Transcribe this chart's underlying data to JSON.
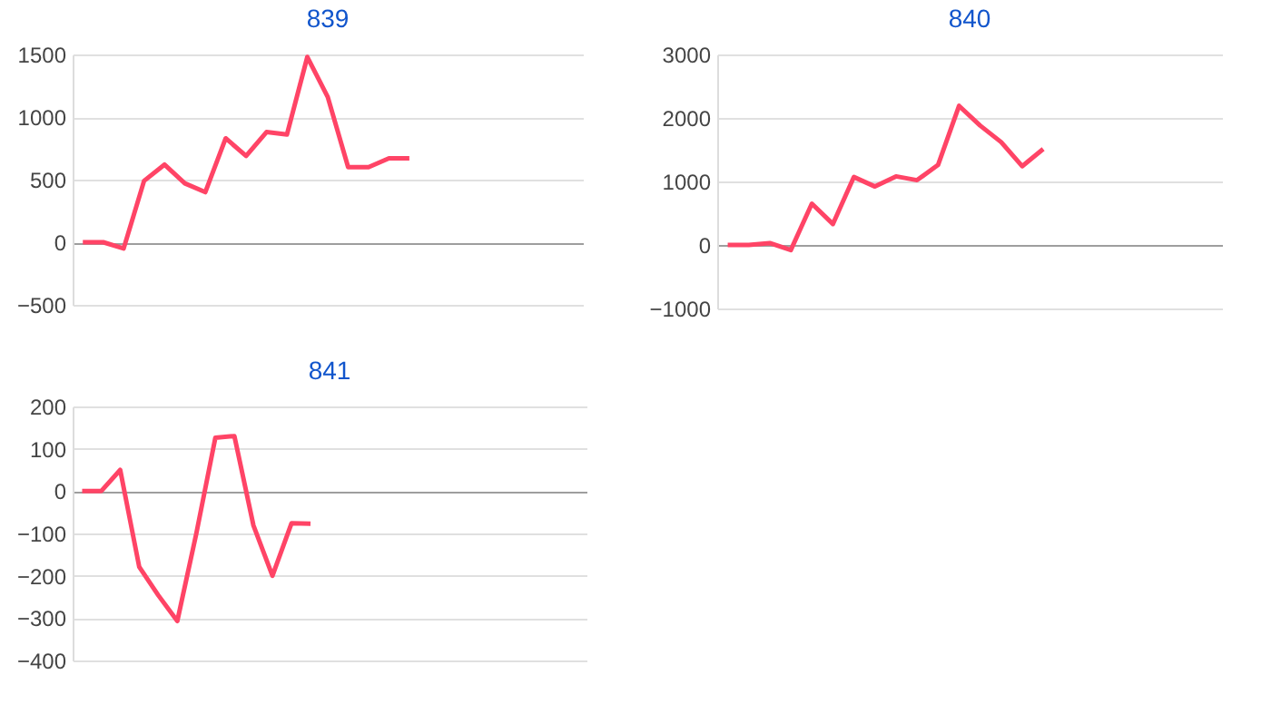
{
  "chart_data": [
    {
      "type": "line",
      "title": "839",
      "categories": [
        null,
        null,
        null,
        null,
        null,
        null,
        null,
        null,
        null,
        null,
        null,
        null,
        null,
        null,
        null,
        null,
        null,
        null,
        null,
        null,
        null,
        null,
        null,
        null,
        null
      ],
      "series": [
        {
          "color": "#ff4466",
          "values": [
            0,
            0,
            -50,
            490,
            620,
            470,
            400,
            830,
            690,
            880,
            860,
            1480,
            1160,
            600,
            600,
            670,
            670,
            null,
            null,
            null,
            null,
            null,
            null,
            null,
            null
          ]
        }
      ],
      "ylim": [
        -500,
        1500
      ],
      "yticks": [
        -500,
        0,
        500,
        1000,
        1500
      ],
      "grid": "y",
      "tick_labels": "y"
    },
    {
      "type": "line",
      "title": "840",
      "categories": [
        null,
        null,
        null,
        null,
        null,
        null,
        null,
        null,
        null,
        null,
        null,
        null,
        null,
        null,
        null,
        null,
        null,
        null,
        null,
        null,
        null,
        null,
        null,
        null
      ],
      "series": [
        {
          "color": "#ff4466",
          "values": [
            0,
            0,
            30,
            -80,
            650,
            330,
            1070,
            920,
            1080,
            1020,
            1260,
            2190,
            1880,
            1620,
            1240,
            1510,
            null,
            null,
            null,
            null,
            null,
            null,
            null,
            null
          ]
        }
      ],
      "ylim": [
        -1000,
        3000
      ],
      "yticks": [
        -1000,
        0,
        1000,
        2000,
        3000
      ],
      "grid": "y",
      "tick_labels": "y"
    },
    {
      "type": "line",
      "title": "841",
      "categories": [
        null,
        null,
        null,
        null,
        null,
        null,
        null,
        null,
        null,
        null,
        null,
        null,
        null,
        null,
        null,
        null,
        null,
        null,
        null,
        null,
        null,
        null,
        null,
        null,
        null,
        null,
        null
      ],
      "series": [
        {
          "color": "#ff4466",
          "values": [
            0,
            0,
            50,
            -179,
            -246,
            -307,
            -100,
            126,
            130,
            -81,
            -200,
            -76,
            -77,
            null,
            null,
            null,
            null,
            null,
            null,
            null,
            null,
            null,
            null,
            null,
            null,
            null,
            null
          ]
        }
      ],
      "ylim": [
        -400,
        200
      ],
      "yticks": [
        -400,
        -300,
        -200,
        -100,
        0,
        100,
        200
      ],
      "grid": "y",
      "tick_labels": "y"
    }
  ]
}
